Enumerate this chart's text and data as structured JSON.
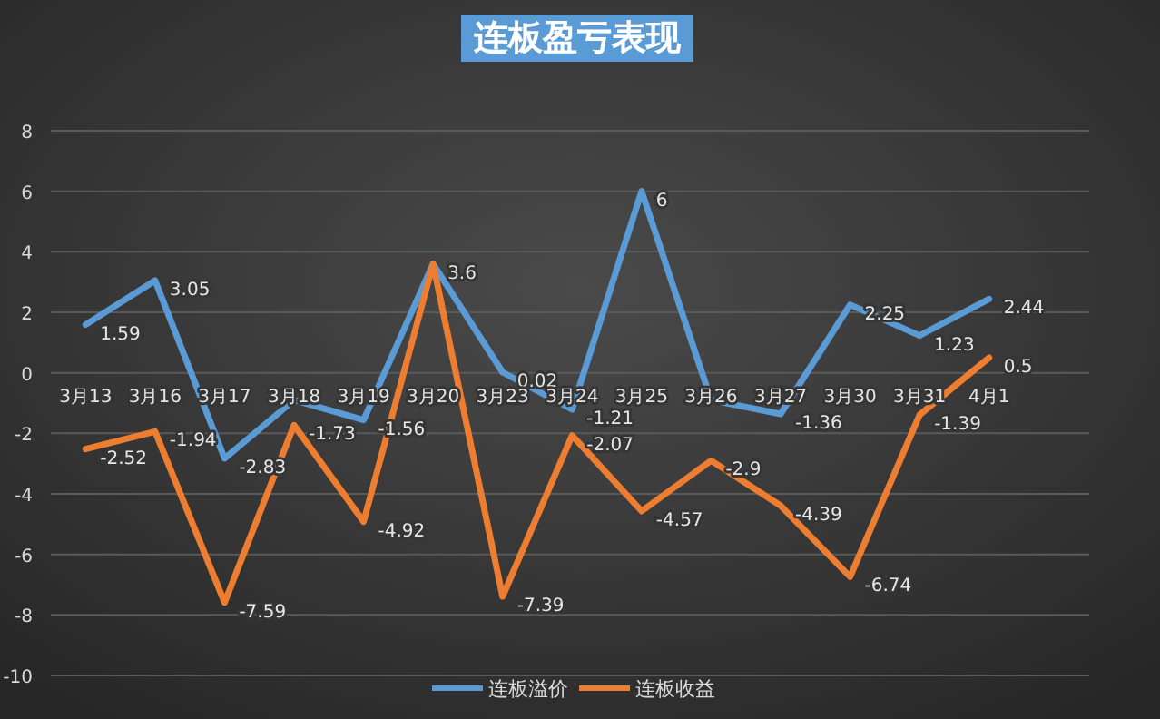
{
  "chart_data": {
    "type": "line",
    "title": "连板盈亏表现",
    "categories": [
      "3月13",
      "3月16",
      "3月17",
      "3月18",
      "3月19",
      "3月20",
      "3月23",
      "3月24",
      "3月25",
      "3月26",
      "3月27",
      "3月30",
      "3月31",
      "4月1"
    ],
    "series": [
      {
        "name": "连板溢价",
        "color": "#5b9bd5",
        "values": [
          1.59,
          3.05,
          -2.83,
          -0.9,
          -1.56,
          3.6,
          0.02,
          -1.21,
          6,
          -0.9,
          -1.36,
          2.25,
          1.23,
          2.44
        ],
        "value_labels": [
          "1.59",
          "3.05",
          "-2.83",
          null,
          "-1.56",
          "3.6",
          "0.02",
          "-1.21",
          "6",
          null,
          "-1.36",
          "2.25",
          "1.23",
          "2.44"
        ]
      },
      {
        "name": "连板收益",
        "color": "#ed7d31",
        "values": [
          -2.52,
          -1.94,
          -7.59,
          -1.73,
          -4.92,
          3.6,
          -7.39,
          -2.07,
          -4.57,
          -2.9,
          -4.39,
          -6.74,
          -1.39,
          0.5
        ],
        "value_labels": [
          "-2.52",
          "-1.94",
          "-7.59",
          "-1.73",
          "-4.92",
          null,
          "-7.39",
          "-2.07",
          "-4.57",
          "-2.9",
          "-4.39",
          "-6.74",
          "-1.39",
          "0.5"
        ]
      }
    ],
    "ylim": [
      -10,
      8
    ],
    "yticks": [
      -10,
      -8,
      -6,
      -4,
      -2,
      0,
      2,
      4,
      6,
      8
    ],
    "grid": "y",
    "legend": "bottom",
    "line_style": "solid",
    "marker": "none"
  }
}
